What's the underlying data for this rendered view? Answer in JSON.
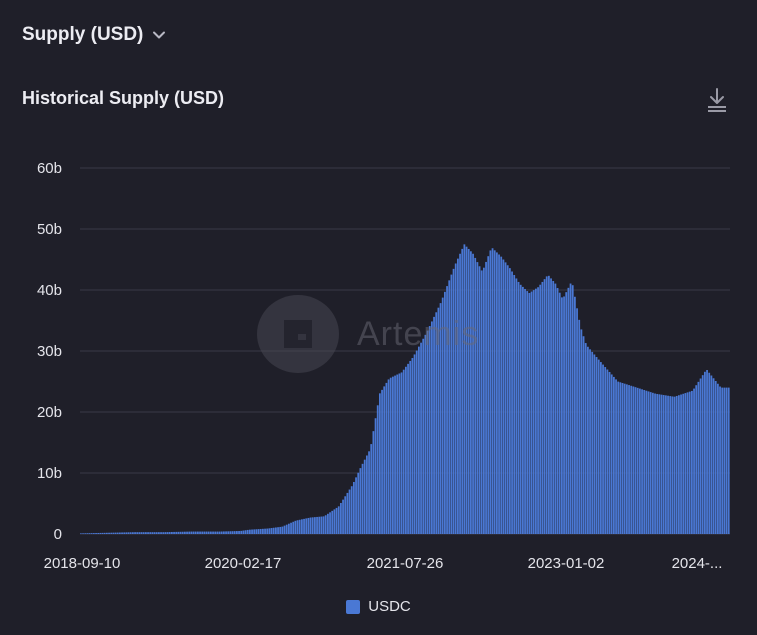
{
  "header": {
    "dropdown_label": "Supply (USD)",
    "chevron_icon": "chevron-down-icon"
  },
  "chart_title": "Historical Supply (USD)",
  "download_icon": "download-icon",
  "watermark": {
    "text": "Artemis",
    "logo_icon": "artemis-logo-icon"
  },
  "colors": {
    "background": "#1f1f29",
    "bar": "#4a78d4",
    "grid": "#3a3a46"
  },
  "chart_data": {
    "type": "bar",
    "title": "Historical Supply (USD)",
    "xlabel": "",
    "ylabel": "",
    "ylim": [
      0,
      60
    ],
    "y_unit": "b",
    "y_ticks": [
      "0",
      "10b",
      "20b",
      "30b",
      "40b",
      "50b",
      "60b"
    ],
    "x_ticks": [
      "2018-09-10",
      "2020-02-17",
      "2021-07-26",
      "2023-01-02",
      "2024-..."
    ],
    "grid": true,
    "legend_position": "bottom",
    "series": [
      {
        "name": "USDC",
        "x": [
          "2018-09-10",
          "2018-12-10",
          "2019-03-10",
          "2019-06-10",
          "2019-09-10",
          "2019-12-10",
          "2020-02-17",
          "2020-03-15",
          "2020-05-15",
          "2020-07-01",
          "2020-08-15",
          "2020-10-01",
          "2020-11-15",
          "2021-01-01",
          "2021-02-15",
          "2021-03-15",
          "2021-04-15",
          "2021-05-15",
          "2021-06-15",
          "2021-07-26",
          "2021-09-01",
          "2021-10-15",
          "2021-12-01",
          "2022-01-15",
          "2022-02-15",
          "2022-03-15",
          "2022-04-15",
          "2022-05-15",
          "2022-06-15",
          "2022-07-15",
          "2022-08-15",
          "2022-09-15",
          "2022-10-15",
          "2022-11-15",
          "2022-12-10",
          "2023-01-02",
          "2023-02-01",
          "2023-03-01",
          "2023-03-20",
          "2023-05-01",
          "2023-07-01",
          "2023-09-01",
          "2023-11-01",
          "2024-01-01",
          "2024-03-01",
          "2024-04-15",
          "2024-06-01"
        ],
        "values": [
          0.1,
          0.2,
          0.3,
          0.3,
          0.4,
          0.4,
          0.5,
          0.7,
          0.9,
          1.2,
          2.2,
          2.7,
          2.9,
          4.5,
          8.0,
          11.0,
          14.0,
          23.0,
          25.5,
          26.5,
          29.0,
          33.0,
          38.0,
          44.0,
          47.5,
          46.0,
          43.0,
          47.0,
          45.5,
          43.5,
          41.0,
          39.5,
          40.5,
          42.5,
          41.0,
          38.5,
          41.5,
          34.0,
          31.0,
          28.5,
          25.0,
          24.0,
          23.0,
          22.5,
          23.5,
          27.0,
          24.0
        ]
      }
    ]
  },
  "legend": {
    "label": "USDC"
  }
}
